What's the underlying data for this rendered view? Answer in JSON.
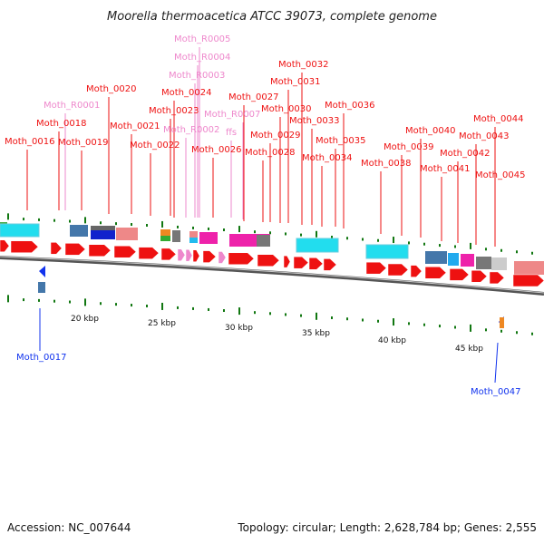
{
  "title": "Moorella thermoacetica ATCC 39073, complete genome",
  "footer": {
    "accession": "Accession: NC_007644",
    "summary": "Topology: circular; Length: 2,628,784 bp; Genes: 2,555"
  },
  "colors": {
    "gene_red": "#ee1111",
    "rna_pink": "#ee88cc",
    "gene_blue": "#1111cc",
    "backbone": "#777777",
    "tick_green": "#117711"
  },
  "top_labels": [
    {
      "text": "Moth_0016",
      "color": "red"
    },
    {
      "text": "Moth_R0001",
      "color": "pink"
    },
    {
      "text": "Moth_0018",
      "color": "red"
    },
    {
      "text": "Moth_0019",
      "color": "red"
    },
    {
      "text": "Moth_0020",
      "color": "red"
    },
    {
      "text": "Moth_0021",
      "color": "red"
    },
    {
      "text": "Moth_0022",
      "color": "red"
    },
    {
      "text": "Moth_0023",
      "color": "red"
    },
    {
      "text": "Moth_0024",
      "color": "red"
    },
    {
      "text": "Moth_R0005",
      "color": "pink"
    },
    {
      "text": "Moth_R0004",
      "color": "pink"
    },
    {
      "text": "Moth_R0003",
      "color": "pink"
    },
    {
      "text": "Moth_R0002",
      "color": "pink"
    },
    {
      "text": "Moth_R0007",
      "color": "pink"
    },
    {
      "text": "ffs",
      "color": "pink"
    },
    {
      "text": "Moth_0026",
      "color": "red"
    },
    {
      "text": "Moth_0027",
      "color": "red"
    },
    {
      "text": "Moth_0028",
      "color": "red"
    },
    {
      "text": "Moth_0029",
      "color": "red"
    },
    {
      "text": "Moth_0030",
      "color": "red"
    },
    {
      "text": "Moth_0031",
      "color": "red"
    },
    {
      "text": "Moth_0032",
      "color": "red"
    },
    {
      "text": "Moth_0033",
      "color": "red"
    },
    {
      "text": "Moth_0034",
      "color": "red"
    },
    {
      "text": "Moth_0035",
      "color": "red"
    },
    {
      "text": "Moth_0036",
      "color": "red"
    },
    {
      "text": "Moth_0038",
      "color": "red"
    },
    {
      "text": "Moth_0039",
      "color": "red"
    },
    {
      "text": "Moth_0040",
      "color": "red"
    },
    {
      "text": "Moth_0041",
      "color": "red"
    },
    {
      "text": "Moth_0042",
      "color": "red"
    },
    {
      "text": "Moth_0043",
      "color": "red"
    },
    {
      "text": "Moth_0044",
      "color": "red"
    },
    {
      "text": "Moth_0045",
      "color": "red"
    }
  ],
  "bottom_labels": [
    {
      "text": "Moth_0017",
      "color": "blue"
    },
    {
      "text": "Moth_0047",
      "color": "blue"
    }
  ],
  "scale_labels": [
    "20 kbp",
    "25 kbp",
    "30 kbp",
    "35 kbp",
    "40 kbp",
    "45 kbp"
  ]
}
